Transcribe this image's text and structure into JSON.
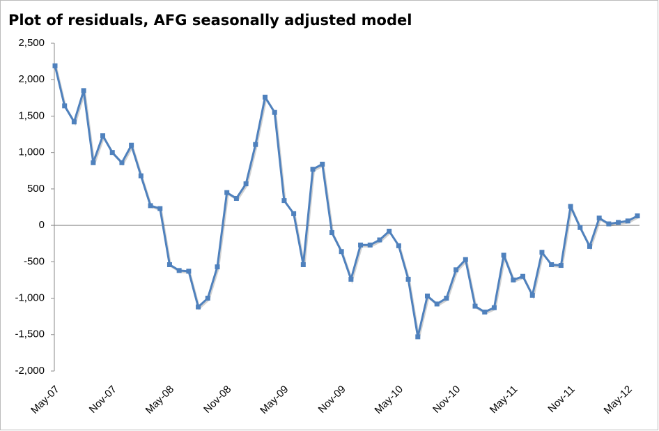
{
  "chart_data": {
    "type": "line",
    "title": "Plot of residuals, AFG seasonally adjusted model",
    "categories": [
      "May-07",
      null,
      null,
      null,
      null,
      null,
      "Nov-07",
      null,
      null,
      null,
      null,
      null,
      "May-08",
      null,
      null,
      null,
      null,
      null,
      "Nov-08",
      null,
      null,
      null,
      null,
      null,
      "May-09",
      null,
      null,
      null,
      null,
      null,
      "Nov-09",
      null,
      null,
      null,
      null,
      null,
      "May-10",
      null,
      null,
      null,
      null,
      null,
      "Nov-10",
      null,
      null,
      null,
      null,
      null,
      "May-11",
      null,
      null,
      null,
      null,
      null,
      "Nov-11",
      null,
      null,
      null,
      null,
      null,
      "May-12",
      null
    ],
    "series": [
      {
        "name": "Residuals",
        "color": "#4f81bd",
        "values": [
          2190,
          1640,
          1420,
          1850,
          860,
          1230,
          1000,
          860,
          1100,
          680,
          270,
          230,
          -540,
          -620,
          -630,
          -1120,
          -1000,
          -570,
          450,
          370,
          570,
          1110,
          1760,
          1550,
          340,
          160,
          -540,
          770,
          840,
          -100,
          -360,
          -740,
          -270,
          -270,
          -200,
          -80,
          -280,
          -740,
          -1530,
          -970,
          -1080,
          -1000,
          -610,
          -470,
          -1110,
          -1190,
          -1130,
          -410,
          -750,
          -700,
          -960,
          -370,
          -540,
          -550,
          260,
          -30,
          -290,
          100,
          20,
          40,
          60,
          130
        ]
      }
    ],
    "ylim": [
      -2000,
      2500
    ],
    "yticks": [
      {
        "value": -2000,
        "label": "-2,000"
      },
      {
        "value": -1500,
        "label": "-1,500"
      },
      {
        "value": -1000,
        "label": "-1,000"
      },
      {
        "value": -500,
        "label": "-500"
      },
      0,
      500,
      {
        "value": 1000,
        "label": "1,000"
      },
      {
        "value": 1500,
        "label": "1,500"
      },
      {
        "value": 2000,
        "label": "2,000"
      },
      {
        "value": 2500,
        "label": "2,500"
      }
    ],
    "grid": false
  }
}
